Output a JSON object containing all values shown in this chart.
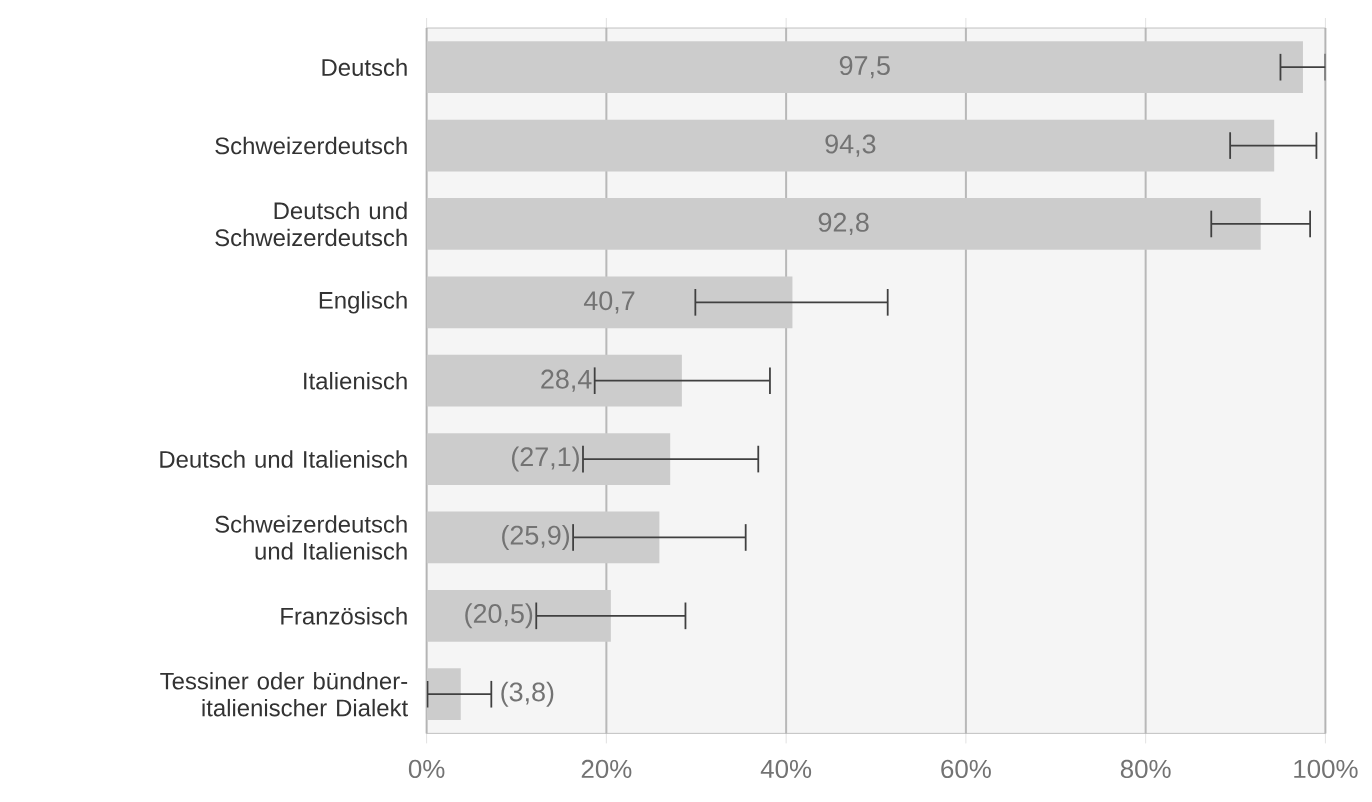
{
  "chart_data": {
    "type": "bar",
    "orientation": "horizontal",
    "categories": [
      "Deutsch",
      "Schweizerdeutsch",
      "Deutsch und Schweizerdeutsch",
      "Englisch",
      "Italienisch",
      "Deutsch und Italienisch",
      "Schweizerdeutsch und Italienisch",
      "Französisch",
      "Tessiner oder bündner-italienischer Dialekt"
    ],
    "values": [
      97.5,
      94.3,
      92.8,
      40.7,
      28.4,
      27.1,
      25.9,
      20.5,
      3.8
    ],
    "value_labels": [
      "97,5",
      "94,3",
      "92,8",
      "40,7",
      "28,4",
      "(27,1)",
      "(25,9)",
      "(20,5)",
      "(3,8)"
    ],
    "errors": [
      [
        95.0,
        100
      ],
      [
        89.4,
        99.0
      ],
      [
        87.3,
        98.3
      ],
      [
        29.9,
        51.3
      ],
      [
        18.7,
        38.2
      ],
      [
        17.4,
        36.9
      ],
      [
        16.3,
        35.5
      ],
      [
        12.2,
        28.8
      ],
      [
        0.1,
        7.2
      ]
    ],
    "color": "#cccccc",
    "xlim": [
      0,
      100
    ],
    "xticks": [
      {
        "value": 0,
        "label": "0%"
      },
      {
        "value": 20,
        "label": "20%"
      },
      {
        "value": 40,
        "label": "40%"
      },
      {
        "value": 60,
        "label": "60%"
      },
      {
        "value": 80,
        "label": "80%"
      },
      {
        "value": 100,
        "label": "100%"
      }
    ],
    "grid": "x"
  }
}
